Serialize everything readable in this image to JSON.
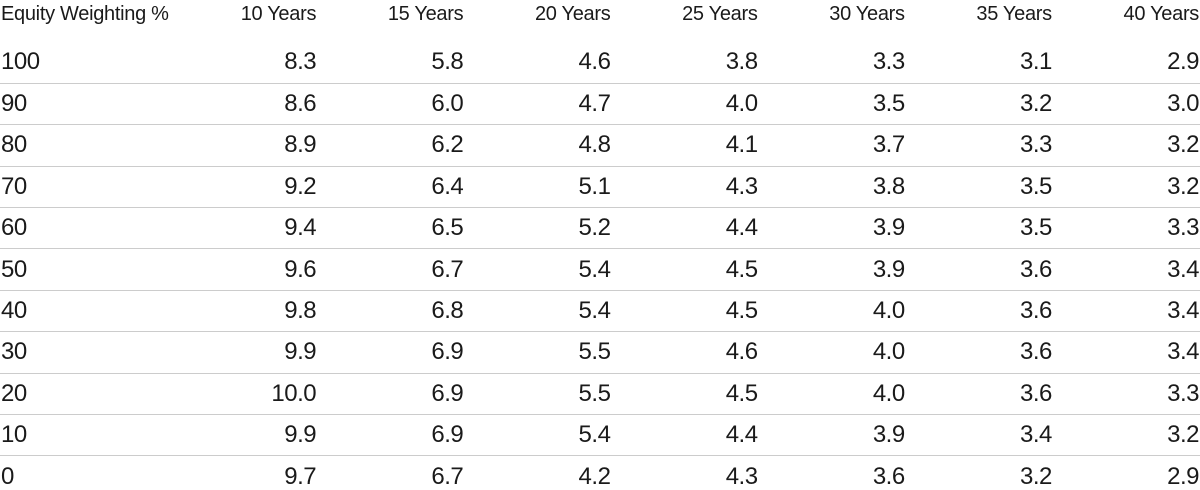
{
  "table": {
    "header": {
      "row_label": "Equity Weighting %",
      "columns": [
        "10 Years",
        "15 Years",
        "20 Years",
        "25 Years",
        "30 Years",
        "35 Years",
        "40 Years"
      ]
    },
    "rows": [
      {
        "label": "100",
        "values": [
          "8.3",
          "5.8",
          "4.6",
          "3.8",
          "3.3",
          "3.1",
          "2.9"
        ]
      },
      {
        "label": "90",
        "values": [
          "8.6",
          "6.0",
          "4.7",
          "4.0",
          "3.5",
          "3.2",
          "3.0"
        ]
      },
      {
        "label": "80",
        "values": [
          "8.9",
          "6.2",
          "4.8",
          "4.1",
          "3.7",
          "3.3",
          "3.2"
        ]
      },
      {
        "label": "70",
        "values": [
          "9.2",
          "6.4",
          "5.1",
          "4.3",
          "3.8",
          "3.5",
          "3.2"
        ]
      },
      {
        "label": "60",
        "values": [
          "9.4",
          "6.5",
          "5.2",
          "4.4",
          "3.9",
          "3.5",
          "3.3"
        ]
      },
      {
        "label": "50",
        "values": [
          "9.6",
          "6.7",
          "5.4",
          "4.5",
          "3.9",
          "3.6",
          "3.4"
        ]
      },
      {
        "label": "40",
        "values": [
          "9.8",
          "6.8",
          "5.4",
          "4.5",
          "4.0",
          "3.6",
          "3.4"
        ]
      },
      {
        "label": "30",
        "values": [
          "9.9",
          "6.9",
          "5.5",
          "4.6",
          "4.0",
          "3.6",
          "3.4"
        ]
      },
      {
        "label": "20",
        "values": [
          "10.0",
          "6.9",
          "5.5",
          "4.5",
          "4.0",
          "3.6",
          "3.3"
        ]
      },
      {
        "label": "10",
        "values": [
          "9.9",
          "6.9",
          "5.4",
          "4.4",
          "3.9",
          "3.4",
          "3.2"
        ]
      },
      {
        "label": "0",
        "values": [
          "9.7",
          "6.7",
          "4.2",
          "4.3",
          "3.6",
          "3.2",
          "2.9"
        ]
      }
    ]
  },
  "colors": {
    "text": "#1a1a1a",
    "separator": "#cccccc",
    "background": "#ffffff"
  },
  "chart_data": {
    "type": "table",
    "title": "",
    "row_header": "Equity Weighting %",
    "columns": [
      "10 Years",
      "15 Years",
      "20 Years",
      "25 Years",
      "30 Years",
      "35 Years",
      "40 Years"
    ],
    "rows": [
      {
        "equity_weighting_pct": 100,
        "values": [
          8.3,
          5.8,
          4.6,
          3.8,
          3.3,
          3.1,
          2.9
        ]
      },
      {
        "equity_weighting_pct": 90,
        "values": [
          8.6,
          6.0,
          4.7,
          4.0,
          3.5,
          3.2,
          3.0
        ]
      },
      {
        "equity_weighting_pct": 80,
        "values": [
          8.9,
          6.2,
          4.8,
          4.1,
          3.7,
          3.3,
          3.2
        ]
      },
      {
        "equity_weighting_pct": 70,
        "values": [
          9.2,
          6.4,
          5.1,
          4.3,
          3.8,
          3.5,
          3.2
        ]
      },
      {
        "equity_weighting_pct": 60,
        "values": [
          9.4,
          6.5,
          5.2,
          4.4,
          3.9,
          3.5,
          3.3
        ]
      },
      {
        "equity_weighting_pct": 50,
        "values": [
          9.6,
          6.7,
          5.4,
          4.5,
          3.9,
          3.6,
          3.4
        ]
      },
      {
        "equity_weighting_pct": 40,
        "values": [
          9.8,
          6.8,
          5.4,
          4.5,
          4.0,
          3.6,
          3.4
        ]
      },
      {
        "equity_weighting_pct": 30,
        "values": [
          9.9,
          6.9,
          5.5,
          4.6,
          4.0,
          3.6,
          3.4
        ]
      },
      {
        "equity_weighting_pct": 20,
        "values": [
          10.0,
          6.9,
          5.5,
          4.5,
          4.0,
          3.6,
          3.3
        ]
      },
      {
        "equity_weighting_pct": 10,
        "values": [
          9.9,
          6.9,
          5.4,
          4.4,
          3.9,
          3.4,
          3.2
        ]
      },
      {
        "equity_weighting_pct": 0,
        "values": [
          9.7,
          6.7,
          4.2,
          4.3,
          3.6,
          3.2,
          2.9
        ]
      }
    ],
    "layout": {
      "grid": "horizontal-separators-only",
      "first_column_align": "left",
      "value_columns_align": "right"
    }
  }
}
